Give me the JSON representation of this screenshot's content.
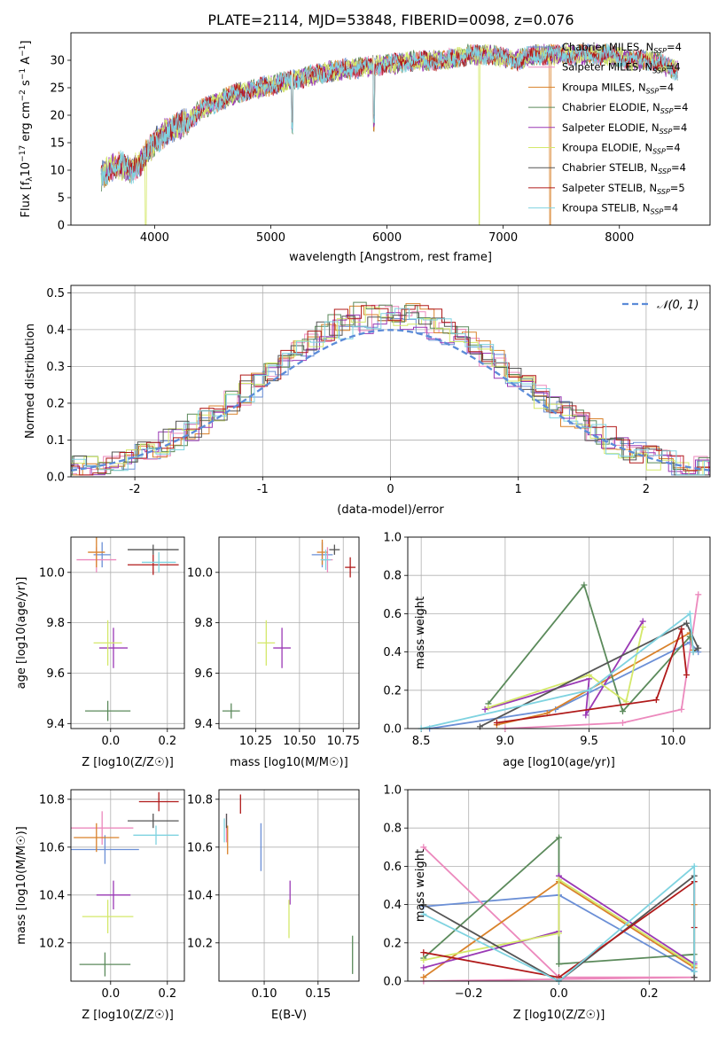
{
  "title": "PLATE=2114, MJD=53848, FIBERID=0098, z=0.076",
  "models": [
    {
      "name": "Chabrier MILES, N_SSP=4",
      "color": "#6b8fd6"
    },
    {
      "name": "Salpeter MILES, N_SSP=4",
      "color": "#ec89bd"
    },
    {
      "name": "Kroupa MILES, N_SSP=4",
      "color": "#d9822b"
    },
    {
      "name": "Chabrier ELODIE, N_SSP=4",
      "color": "#5b8a5b"
    },
    {
      "name": "Salpeter ELODIE, N_SSP=4",
      "color": "#9a39b5"
    },
    {
      "name": "Kroupa ELODIE, N_SSP=4",
      "color": "#d4e86a"
    },
    {
      "name": "Chabrier STELIB, N_SSP=4",
      "color": "#555555"
    },
    {
      "name": "Salpeter STELIB, N_SSP=5",
      "color": "#b01a1a"
    },
    {
      "name": "Kroupa STELIB, N_SSP=4",
      "color": "#7fd3e0"
    }
  ],
  "chart_data": [
    {
      "type": "line",
      "panel": "spectrum",
      "xlabel": "wavelength [Angstrom, rest frame]",
      "ylabel": "Flux [f_λ10^-17 erg cm^-2 s^-1 A^-1]",
      "xlim": [
        3280,
        8780
      ],
      "ylim": [
        0,
        35
      ],
      "xticks": [
        4000,
        5000,
        6000,
        7000,
        8000
      ],
      "yticks": [
        0,
        5,
        10,
        15,
        20,
        25,
        30
      ],
      "grid": false,
      "legend": "right",
      "shape": {
        "x": [
          3500,
          3600,
          3700,
          3800,
          3900,
          4000,
          4100,
          4200,
          4300,
          4400,
          4500,
          4700,
          4900,
          5100,
          5300,
          5500,
          5700,
          5900,
          6100,
          6300,
          6500,
          6700,
          6900,
          7100,
          7300,
          7500,
          7700,
          7900,
          8100,
          8300,
          8500
        ],
        "y": [
          8,
          10,
          11,
          10,
          12,
          15,
          17,
          18,
          19,
          21,
          22,
          24,
          25,
          26,
          27,
          28,
          28.5,
          29,
          29.5,
          30,
          30,
          31,
          31,
          30,
          31,
          31,
          31,
          31,
          30,
          30,
          28
        ]
      }
    },
    {
      "type": "area",
      "panel": "residual-histogram",
      "xlabel": "(data-model)/error",
      "ylabel": "Normed distribution",
      "xlim": [
        -2.5,
        2.5
      ],
      "ylim": [
        0,
        0.52
      ],
      "xticks": [
        -2,
        -1,
        0,
        1,
        2
      ],
      "yticks": [
        0.0,
        0.1,
        0.2,
        0.3,
        0.4,
        0.5
      ],
      "grid": true,
      "legend": "top-right",
      "reference_curve": "N(0,1)",
      "legend_label": "𝒩(0, 1)"
    },
    {
      "type": "scatter",
      "panel": "age-vs-Z",
      "xlabel": "Z [log10(Z/Z☉)]",
      "ylabel": "age  [log10(age/yr)]",
      "xlim": [
        -0.14,
        0.26
      ],
      "ylim": [
        9.38,
        10.14
      ],
      "xticks": [
        0.0,
        0.2
      ],
      "yticks": [
        9.4,
        9.6,
        9.8,
        10.0
      ],
      "points": [
        {
          "m": 0,
          "x": -0.03,
          "y": 10.07,
          "ex": 0.03,
          "ey": 0.05
        },
        {
          "m": 1,
          "x": -0.05,
          "y": 10.05,
          "ex": 0.07,
          "ey": 0.05
        },
        {
          "m": 2,
          "x": -0.05,
          "y": 10.08,
          "ex": 0.03,
          "ey": 0.06
        },
        {
          "m": 3,
          "x": -0.01,
          "y": 9.45,
          "ex": 0.08,
          "ey": 0.04
        },
        {
          "m": 4,
          "x": 0.01,
          "y": 9.7,
          "ex": 0.05,
          "ey": 0.08
        },
        {
          "m": 5,
          "x": -0.01,
          "y": 9.72,
          "ex": 0.05,
          "ey": 0.09
        },
        {
          "m": 6,
          "x": 0.15,
          "y": 10.09,
          "ex": 0.09,
          "ey": 0.02
        },
        {
          "m": 7,
          "x": 0.15,
          "y": 10.03,
          "ex": 0.09,
          "ey": 0.04
        },
        {
          "m": 8,
          "x": 0.17,
          "y": 10.04,
          "ex": 0.06,
          "ey": 0.04
        }
      ]
    },
    {
      "type": "scatter",
      "panel": "age-vs-mass",
      "xlabel": "mass [log10(M/M☉)]",
      "ylabel": "",
      "xlim": [
        10.04,
        10.84
      ],
      "ylim": [
        9.38,
        10.14
      ],
      "xticks": [
        10.25,
        10.5,
        10.75
      ],
      "yticks": [
        9.4,
        9.6,
        9.8,
        10.0
      ],
      "points": [
        {
          "m": 0,
          "x": 10.63,
          "y": 10.07,
          "ex": 0.06,
          "ey": 0.05
        },
        {
          "m": 1,
          "x": 10.66,
          "y": 10.05,
          "ex": 0.03,
          "ey": 0.05
        },
        {
          "m": 2,
          "x": 10.63,
          "y": 10.08,
          "ex": 0.03,
          "ey": 0.05
        },
        {
          "m": 3,
          "x": 10.11,
          "y": 9.45,
          "ex": 0.05,
          "ey": 0.03
        },
        {
          "m": 4,
          "x": 10.4,
          "y": 9.7,
          "ex": 0.05,
          "ey": 0.08
        },
        {
          "m": 5,
          "x": 10.31,
          "y": 9.72,
          "ex": 0.05,
          "ey": 0.09
        },
        {
          "m": 6,
          "x": 10.7,
          "y": 10.09,
          "ex": 0.03,
          "ey": 0.02
        },
        {
          "m": 7,
          "x": 10.79,
          "y": 10.02,
          "ex": 0.03,
          "ey": 0.04
        },
        {
          "m": 8,
          "x": 10.65,
          "y": 10.05,
          "ex": 0.03,
          "ey": 0.04
        }
      ]
    },
    {
      "type": "line",
      "panel": "mass-weight-vs-age",
      "xlabel": "age  [log10(age/yr)]",
      "ylabel": "mass weight",
      "xlim": [
        8.42,
        10.22
      ],
      "ylim": [
        0,
        1
      ],
      "xticks": [
        8.5,
        9.0,
        9.5,
        10.0
      ],
      "yticks": [
        0.0,
        0.2,
        0.4,
        0.6,
        0.8,
        1.0
      ],
      "series": [
        {
          "m": 0,
          "x": [
            8.55,
            9.3,
            10.1,
            10.15
          ],
          "y": [
            0.0,
            0.1,
            0.45,
            0.4
          ]
        },
        {
          "m": 1,
          "x": [
            9.0,
            9.7,
            10.05,
            10.15
          ],
          "y": [
            0.0,
            0.03,
            0.1,
            0.7
          ]
        },
        {
          "m": 2,
          "x": [
            8.95,
            9.25,
            10.1,
            10.12
          ],
          "y": [
            0.02,
            0.08,
            0.5,
            0.41
          ]
        },
        {
          "m": 3,
          "x": [
            8.9,
            9.47,
            9.7,
            10.1
          ],
          "y": [
            0.13,
            0.75,
            0.09,
            0.48
          ]
        },
        {
          "m": 4,
          "x": [
            8.88,
            9.5,
            9.48,
            9.82
          ],
          "y": [
            0.1,
            0.26,
            0.07,
            0.56
          ]
        },
        {
          "m": 5,
          "x": [
            8.9,
            9.5,
            9.72,
            9.82
          ],
          "y": [
            0.11,
            0.28,
            0.14,
            0.53
          ]
        },
        {
          "m": 6,
          "x": [
            8.85,
            10.08,
            10.15,
            10.12
          ],
          "y": [
            0.01,
            0.55,
            0.42,
            0.4
          ]
        },
        {
          "m": 7,
          "x": [
            8.95,
            9.9,
            10.05,
            10.08
          ],
          "y": [
            0.03,
            0.15,
            0.52,
            0.28
          ]
        },
        {
          "m": 8,
          "x": [
            8.5,
            9.5,
            10.1,
            10.12
          ],
          "y": [
            0.0,
            0.2,
            0.6,
            0.4
          ]
        }
      ]
    },
    {
      "type": "scatter",
      "panel": "mass-vs-Z",
      "xlabel": "Z [log10(Z/Z☉)]",
      "ylabel": "mass [log10(M/M☉)]",
      "xlim": [
        -0.14,
        0.26
      ],
      "ylim": [
        10.04,
        10.84
      ],
      "xticks": [
        0.0,
        0.2
      ],
      "yticks": [
        10.2,
        10.4,
        10.6,
        10.8
      ],
      "points": [
        {
          "m": 0,
          "x": -0.02,
          "y": 10.59,
          "ex": 0.12,
          "ey": 0.06
        },
        {
          "m": 1,
          "x": -0.03,
          "y": 10.68,
          "ex": 0.11,
          "ey": 0.07
        },
        {
          "m": 2,
          "x": -0.05,
          "y": 10.64,
          "ex": 0.08,
          "ey": 0.06
        },
        {
          "m": 3,
          "x": -0.02,
          "y": 10.11,
          "ex": 0.09,
          "ey": 0.05
        },
        {
          "m": 4,
          "x": 0.01,
          "y": 10.4,
          "ex": 0.06,
          "ey": 0.06
        },
        {
          "m": 5,
          "x": -0.01,
          "y": 10.31,
          "ex": 0.09,
          "ey": 0.07
        },
        {
          "m": 6,
          "x": 0.15,
          "y": 10.71,
          "ex": 0.09,
          "ey": 0.03
        },
        {
          "m": 7,
          "x": 0.17,
          "y": 10.79,
          "ex": 0.07,
          "ey": 0.04
        },
        {
          "m": 8,
          "x": 0.16,
          "y": 10.65,
          "ex": 0.08,
          "ey": 0.04
        }
      ]
    },
    {
      "type": "scatter",
      "panel": "mass-vs-ebv",
      "xlabel": "E(B-V)",
      "ylabel": "",
      "xlim": [
        0.058,
        0.188
      ],
      "ylim": [
        10.04,
        10.84
      ],
      "xticks": [
        0.1,
        0.15
      ],
      "yticks": [
        10.2,
        10.4,
        10.6,
        10.8
      ],
      "points": [
        {
          "m": 0,
          "x": 0.097,
          "y": 10.6,
          "ex": 0.0,
          "ey": 0.1
        },
        {
          "m": 1,
          "x": 0.065,
          "y": 10.68,
          "ex": 0.0,
          "ey": 0.06
        },
        {
          "m": 2,
          "x": 0.066,
          "y": 10.63,
          "ex": 0.0,
          "ey": 0.06
        },
        {
          "m": 3,
          "x": 0.182,
          "y": 10.15,
          "ex": 0.0,
          "ey": 0.08
        },
        {
          "m": 4,
          "x": 0.124,
          "y": 10.41,
          "ex": 0.0,
          "ey": 0.05
        },
        {
          "m": 5,
          "x": 0.123,
          "y": 10.3,
          "ex": 0.0,
          "ey": 0.08
        },
        {
          "m": 6,
          "x": 0.065,
          "y": 10.71,
          "ex": 0.0,
          "ey": 0.03
        },
        {
          "m": 7,
          "x": 0.078,
          "y": 10.78,
          "ex": 0.0,
          "ey": 0.04
        },
        {
          "m": 8,
          "x": 0.063,
          "y": 10.67,
          "ex": 0.0,
          "ey": 0.05
        }
      ]
    },
    {
      "type": "line",
      "panel": "mass-weight-vs-Z",
      "xlabel": "Z [log10(Z/Z☉)]",
      "ylabel": "mass weight",
      "xlim": [
        -0.335,
        0.335
      ],
      "ylim": [
        0,
        1
      ],
      "xticks": [
        -0.2,
        0.0,
        0.2
      ],
      "yticks": [
        0.0,
        0.2,
        0.4,
        0.6,
        0.8,
        1.0
      ],
      "series": [
        {
          "m": 0,
          "x": [
            -0.3,
            0.0,
            0.3,
            0.3
          ],
          "y": [
            0.39,
            0.45,
            0.05,
            0.1
          ]
        },
        {
          "m": 1,
          "x": [
            -0.3,
            0.0,
            0.3,
            -0.3
          ],
          "y": [
            0.7,
            0.02,
            0.02,
            0.0
          ]
        },
        {
          "m": 2,
          "x": [
            -0.3,
            0.0,
            0.3,
            0.3
          ],
          "y": [
            0.02,
            0.52,
            0.07,
            0.4
          ]
        },
        {
          "m": 3,
          "x": [
            -0.3,
            0.0,
            0.0,
            0.3
          ],
          "y": [
            0.12,
            0.75,
            0.09,
            0.14
          ]
        },
        {
          "m": 4,
          "x": [
            -0.3,
            0.0,
            0.0,
            0.3
          ],
          "y": [
            0.07,
            0.26,
            0.55,
            0.09
          ]
        },
        {
          "m": 5,
          "x": [
            -0.3,
            0.0,
            0.0,
            0.3
          ],
          "y": [
            0.11,
            0.25,
            0.53,
            0.08
          ]
        },
        {
          "m": 6,
          "x": [
            -0.3,
            0.0,
            0.3,
            0.3
          ],
          "y": [
            0.4,
            0.0,
            0.55,
            0.02
          ]
        },
        {
          "m": 7,
          "x": [
            -0.3,
            0.0,
            0.3,
            0.3
          ],
          "y": [
            0.15,
            0.02,
            0.52,
            0.28
          ]
        },
        {
          "m": 8,
          "x": [
            -0.3,
            0.0,
            0.3,
            0.3
          ],
          "y": [
            0.35,
            0.0,
            0.6,
            0.05
          ]
        }
      ]
    }
  ]
}
